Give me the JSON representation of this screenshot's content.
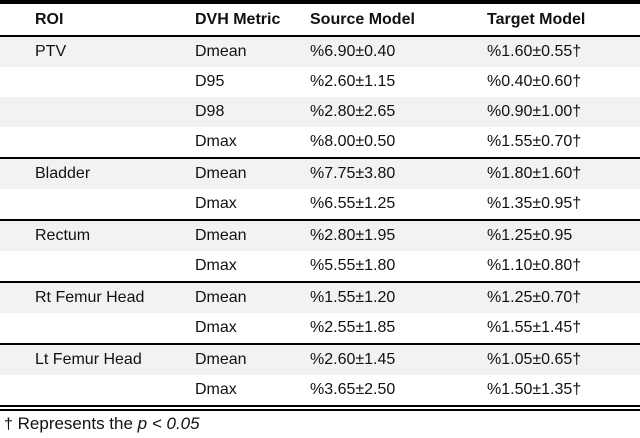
{
  "table": {
    "columns": [
      "ROI",
      "DVH Metric",
      "Source Model",
      "Target Model"
    ],
    "groups": [
      {
        "roi": "PTV",
        "rows": [
          {
            "metric": "Dmean",
            "source": "%6.90±0.40",
            "target": "%1.60±0.55†"
          },
          {
            "metric": "D95",
            "source": "%2.60±1.15",
            "target": "%0.40±0.60†"
          },
          {
            "metric": "D98",
            "source": "%2.80±2.65",
            "target": "%0.90±1.00†"
          },
          {
            "metric": "Dmax",
            "source": "%8.00±0.50",
            "target": "%1.55±0.70†"
          }
        ]
      },
      {
        "roi": "Bladder",
        "rows": [
          {
            "metric": "Dmean",
            "source": "%7.75±3.80",
            "target": "%1.80±1.60†"
          },
          {
            "metric": "Dmax",
            "source": "%6.55±1.25",
            "target": "%1.35±0.95†"
          }
        ]
      },
      {
        "roi": "Rectum",
        "rows": [
          {
            "metric": "Dmean",
            "source": "%2.80±1.95",
            "target": "%1.25±0.95"
          },
          {
            "metric": "Dmax",
            "source": "%5.55±1.80",
            "target": "%1.10±0.80†"
          }
        ]
      },
      {
        "roi": "Rt Femur Head",
        "rows": [
          {
            "metric": "Dmean",
            "source": "%1.55±1.20",
            "target": "%1.25±0.70†"
          },
          {
            "metric": "Dmax",
            "source": "%2.55±1.85",
            "target": "%1.55±1.45†"
          }
        ]
      },
      {
        "roi": "Lt Femur Head",
        "rows": [
          {
            "metric": "Dmean",
            "source": "%2.60±1.45",
            "target": "%1.05±0.65†"
          },
          {
            "metric": "Dmax",
            "source": "%3.65±2.50",
            "target": "%1.50±1.35†"
          }
        ]
      }
    ],
    "footnote": {
      "symbol": "†",
      "text": " Represents the ",
      "italic": "p < 0.05"
    },
    "colors": {
      "row_shading": "#f2f2f2",
      "rule": "#000000",
      "text": "#111111"
    }
  }
}
